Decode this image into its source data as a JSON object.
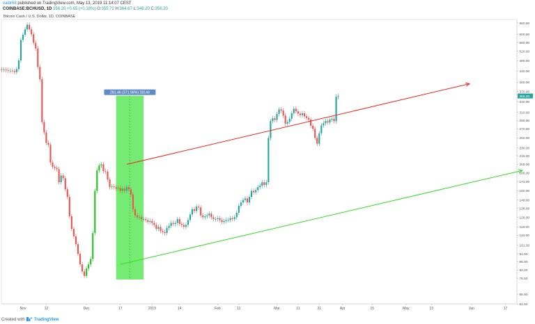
{
  "header": {
    "author": "valdr68",
    "published_text": "published on TradingView.com, May 13, 2019 11:14:07 CEST",
    "symbol": "COINBASE:BCHUSD, 1D",
    "price": "356.20",
    "change": "+0.65 (+0.18%)",
    "open_label": "O:",
    "open": "355.72",
    "high_label": "H:",
    "high": "364.67",
    "low_label": "L:",
    "low": "348.20",
    "close_label": "C:",
    "close": "356.20"
  },
  "subtitle": "Bitcoin Cash / U.S. Dollar, 1D, COINBASE",
  "footer": {
    "created_with": "Created with",
    "brand": "TradingView"
  },
  "colors": {
    "up": "#26a69a",
    "up_bright": "#21c21d",
    "down": "#ef5350",
    "upper_trendline": "#ee2222",
    "lower_trendline": "#33dd22",
    "measure_box": "#5ee85a",
    "measure_label_bg": "#5f8cc6",
    "price_tag": "#26a69a"
  },
  "chart_data": {
    "type": "candlestick",
    "title": "Bitcoin Cash / U.S. Dollar, 1D, COINBASE",
    "y_scale": "log",
    "y_ticks": [
      "61.50",
      "66.90",
      "76.50",
      "82.00",
      "88.00",
      "94.00",
      "101.00",
      "110.00",
      "118.00",
      "128.00",
      "138.00",
      "148.00",
      "160.00",
      "173.00",
      "186.00",
      "200.00",
      "215.00",
      "230.00",
      "250.00",
      "270.00",
      "290.00",
      "310.00",
      "340.00",
      "370.00",
      "400.00",
      "440.00",
      "480.00",
      "520.00",
      "560.00",
      "600.00",
      "660.00"
    ],
    "x_ticks": [
      {
        "label": "Nov",
        "date": "2018-11-01"
      },
      {
        "label": "12",
        "date": "2018-11-12"
      },
      {
        "label": "Dec",
        "date": "2018-12-01"
      },
      {
        "label": "17",
        "date": "2018-12-17"
      },
      {
        "label": "2019",
        "date": "2019-01-01"
      },
      {
        "label": "14",
        "date": "2019-01-14"
      },
      {
        "label": "Feb",
        "date": "2019-02-01"
      },
      {
        "label": "11",
        "date": "2019-02-11"
      },
      {
        "label": "Mar",
        "date": "2019-03-01"
      },
      {
        "label": "11",
        "date": "2019-03-11"
      },
      {
        "label": "21",
        "date": "2019-03-21"
      },
      {
        "label": "Apr",
        "date": "2019-04-01"
      },
      {
        "label": "15",
        "date": "2019-04-15"
      },
      {
        "label": "May",
        "date": "2019-05-01"
      },
      {
        "label": "13",
        "date": "2019-05-13"
      },
      {
        "label": "Jun",
        "date": "2019-06-01"
      },
      {
        "label": "17",
        "date": "2019-06-17"
      }
    ],
    "last_price": "356.20",
    "measure": {
      "label": "281.46 (371.98%) 28146",
      "from": {
        "date": "2018-12-15",
        "price": 75.7
      },
      "to": {
        "date": "2018-12-28",
        "price": 357.2
      }
    },
    "trendlines": [
      {
        "name": "upper",
        "from": {
          "date": "2018-12-20",
          "price": 200
        },
        "to": {
          "date": "2019-05-31",
          "price": 395
        }
      },
      {
        "name": "lower",
        "from": {
          "date": "2018-12-17",
          "price": 86
        },
        "to": {
          "date": "2019-06-25",
          "price": 190
        }
      }
    ],
    "start_date": "2018-10-20",
    "closes": [
      446,
      446,
      444,
      445,
      443,
      441,
      441,
      440,
      436,
      447,
      481,
      572,
      598,
      625,
      650,
      625,
      600,
      558,
      532,
      455,
      410,
      286,
      262,
      240,
      236,
      203,
      196,
      194,
      192,
      172,
      182,
      178,
      162,
      152,
      129,
      116,
      109,
      102,
      94,
      86,
      81,
      78,
      83,
      86,
      90,
      112,
      160,
      190,
      198,
      200,
      189,
      188,
      176,
      165,
      166,
      165,
      163,
      164,
      160,
      163,
      160,
      165,
      162,
      155,
      137,
      130,
      128,
      128,
      126,
      126,
      125,
      123,
      124,
      122,
      120,
      116,
      118,
      114,
      113,
      112,
      117,
      119,
      122,
      121,
      122,
      126,
      121,
      120,
      118,
      120,
      125,
      131,
      137,
      135,
      140,
      139,
      130,
      128,
      129,
      130,
      132,
      128,
      126,
      126,
      127,
      125,
      123,
      124,
      125,
      125,
      127,
      126,
      128,
      133,
      141,
      145,
      148,
      150,
      145,
      152,
      160,
      158,
      161,
      165,
      167,
      172,
      168,
      172,
      250,
      288,
      295,
      291,
      306,
      318,
      315,
      302,
      282,
      286,
      294,
      308,
      320,
      313,
      307,
      303,
      308,
      300,
      296,
      292,
      277,
      270,
      250,
      238,
      260,
      278,
      283,
      288,
      285,
      292,
      294,
      288,
      354,
      356
    ]
  }
}
